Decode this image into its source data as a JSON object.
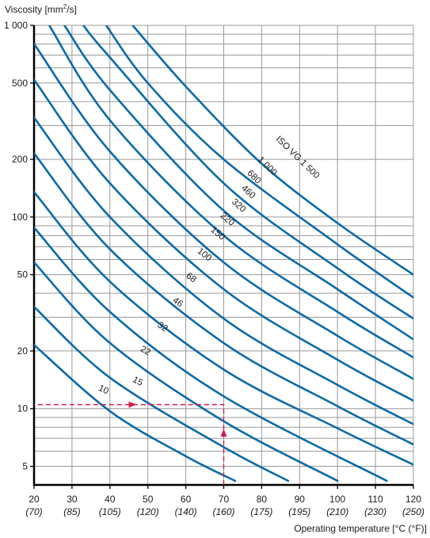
{
  "chart_data": {
    "type": "line",
    "title": "",
    "ylabel_prefix": "Viscosity [mm",
    "ylabel_sup": "2",
    "ylabel_suffix": "/s]",
    "xlabel": "Operating temperature [°C (°F)]",
    "xlim": [
      20,
      120
    ],
    "ylim": [
      4,
      1000
    ],
    "yscale": "log",
    "grid": true,
    "x_ticks": [
      {
        "c": "20",
        "f": "(70)"
      },
      {
        "c": "30",
        "f": "(85)"
      },
      {
        "c": "40",
        "f": "(105)"
      },
      {
        "c": "50",
        "f": "(120)"
      },
      {
        "c": "60",
        "f": "(140)"
      },
      {
        "c": "70",
        "f": "(160)"
      },
      {
        "c": "80",
        "f": "(175)"
      },
      {
        "c": "90",
        "f": "(195)"
      },
      {
        "c": "100",
        "f": "(210)"
      },
      {
        "c": "110",
        "f": "(230)"
      },
      {
        "c": "120",
        "f": "(250)"
      }
    ],
    "y_ticks": [
      {
        "value": 1000,
        "label": "1 000"
      },
      {
        "value": 500,
        "label": "500"
      },
      {
        "value": 200,
        "label": "200"
      },
      {
        "value": 100,
        "label": "100"
      },
      {
        "value": 50,
        "label": "50"
      },
      {
        "value": 20,
        "label": "20"
      },
      {
        "value": 10,
        "label": "10"
      },
      {
        "value": 5,
        "label": "5"
      }
    ],
    "series_color": "#0b6aa8",
    "series": [
      {
        "name": "10",
        "x": [
          20,
          40,
          60,
          73
        ],
        "y": [
          21.5,
          9.7,
          5.65,
          4.2
        ]
      },
      {
        "name": "15",
        "x": [
          20,
          40,
          70,
          87
        ],
        "y": [
          34,
          14.5,
          6.3,
          4.2
        ]
      },
      {
        "name": "22",
        "x": [
          20,
          40,
          70,
          100
        ],
        "y": [
          58,
          22,
          8.6,
          4.2
        ]
      },
      {
        "name": "32",
        "x": [
          20,
          40,
          70,
          113
        ],
        "y": [
          88,
          32,
          11.6,
          4.2
        ]
      },
      {
        "name": "46",
        "x": [
          20,
          40,
          70,
          100,
          120
        ],
        "y": [
          135,
          46,
          16,
          7.9,
          5.1
        ]
      },
      {
        "name": "68",
        "x": [
          20,
          40,
          70,
          100,
          120
        ],
        "y": [
          215,
          68,
          22,
          10.3,
          6.5
        ]
      },
      {
        "name": "100",
        "x": [
          20,
          40,
          70,
          100,
          120
        ],
        "y": [
          330,
          100,
          29.5,
          13.3,
          8.3
        ]
      },
      {
        "name": "150",
        "x": [
          20,
          40,
          70,
          100,
          120
        ],
        "y": [
          520,
          150,
          42,
          18,
          11
        ]
      },
      {
        "name": "220",
        "x": [
          20,
          40,
          70,
          100,
          120
        ],
        "y": [
          800,
          220,
          58,
          24,
          14.3
        ]
      },
      {
        "name": "320",
        "x": [
          24,
          40,
          70,
          100,
          120
        ],
        "y": [
          1000,
          320,
          80,
          32,
          18.5
        ]
      },
      {
        "name": "460",
        "x": [
          28,
          40,
          70,
          100,
          120
        ],
        "y": [
          1000,
          460,
          108,
          42,
          23
        ]
      },
      {
        "name": "680",
        "x": [
          33,
          40,
          70,
          100,
          120
        ],
        "y": [
          1000,
          680,
          150,
          54,
          29.5
        ]
      },
      {
        "name": "1 000",
        "x": [
          39,
          50,
          70,
          100,
          120
        ],
        "y": [
          1000,
          500,
          200,
          72,
          38
        ]
      },
      {
        "name": "ISO VG 1 500",
        "x": [
          46,
          60,
          80,
          100,
          120
        ],
        "y": [
          1000,
          480,
          190,
          93,
          50
        ]
      }
    ],
    "curve_labels": [
      {
        "text": "10",
        "x": 38,
        "y": 12.2,
        "angle": 26
      },
      {
        "text": "15",
        "x": 47,
        "y": 13.5,
        "angle": 28
      },
      {
        "text": "22",
        "x": 49,
        "y": 19.5,
        "angle": 30
      },
      {
        "text": "32",
        "x": 53.5,
        "y": 26,
        "angle": 33
      },
      {
        "text": "46",
        "x": 57.5,
        "y": 35,
        "angle": 35
      },
      {
        "text": "68",
        "x": 61,
        "y": 47,
        "angle": 37
      },
      {
        "text": "100",
        "x": 64.5,
        "y": 62,
        "angle": 38
      },
      {
        "text": "150",
        "x": 68,
        "y": 80,
        "angle": 40
      },
      {
        "text": "220",
        "x": 70.5,
        "y": 95,
        "angle": 41
      },
      {
        "text": "320",
        "x": 73.5,
        "y": 112,
        "angle": 42
      },
      {
        "text": "460",
        "x": 76,
        "y": 132,
        "angle": 43
      },
      {
        "text": "680",
        "x": 77.5,
        "y": 158,
        "angle": 44
      },
      {
        "text": "1 000",
        "x": 81,
        "y": 180,
        "angle": 44
      },
      {
        "text": "ISO VG 1 500",
        "x": 89,
        "y": 200,
        "angle": 44
      }
    ],
    "annotation": {
      "color": "#d21e4b",
      "from_temperature": 70,
      "to_viscosity": 10.5,
      "arrow_up_at_viscosity": 7.5,
      "arrow_left_at_temperature": 46
    }
  }
}
